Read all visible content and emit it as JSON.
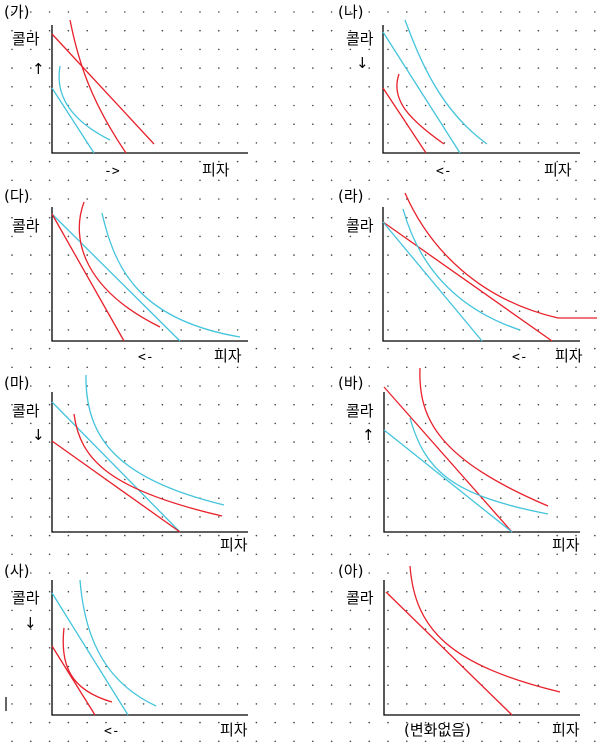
{
  "colors": {
    "red": "#e8202a",
    "cyan": "#44c4dc",
    "background": "#ffffff"
  },
  "panels": [
    {
      "id": "ga",
      "title": "(가)",
      "ylabel": "콜라",
      "xlabel": "피자",
      "ycue": "↑",
      "xcue": "->"
    },
    {
      "id": "na",
      "title": "(나)",
      "ylabel": "콜라",
      "xlabel": "피자",
      "ycue": "↓",
      "xcue": "<-"
    },
    {
      "id": "da",
      "title": "(다)",
      "ylabel": "콜라",
      "xlabel": "피자",
      "ycue": "",
      "xcue": "<-"
    },
    {
      "id": "ra",
      "title": "(라)",
      "ylabel": "콜라",
      "xlabel": "피자",
      "ycue": "",
      "xcue": "<-"
    },
    {
      "id": "ma",
      "title": "(마)",
      "ylabel": "콜라",
      "xlabel": "피자",
      "ycue": "↓",
      "xcue": ""
    },
    {
      "id": "ba",
      "title": "(바)",
      "ylabel": "콜라",
      "xlabel": "피자",
      "ycue": "↑",
      "xcue": ""
    },
    {
      "id": "sa",
      "title": "(사)",
      "ylabel": "콜라",
      "xlabel": "피자",
      "ycue": "↓",
      "xcue": "<-"
    },
    {
      "id": "a",
      "title": "(아)",
      "ylabel": "콜라",
      "xlabel": "피자",
      "ycue": "",
      "xcue": "(변화없음)"
    }
  ]
}
